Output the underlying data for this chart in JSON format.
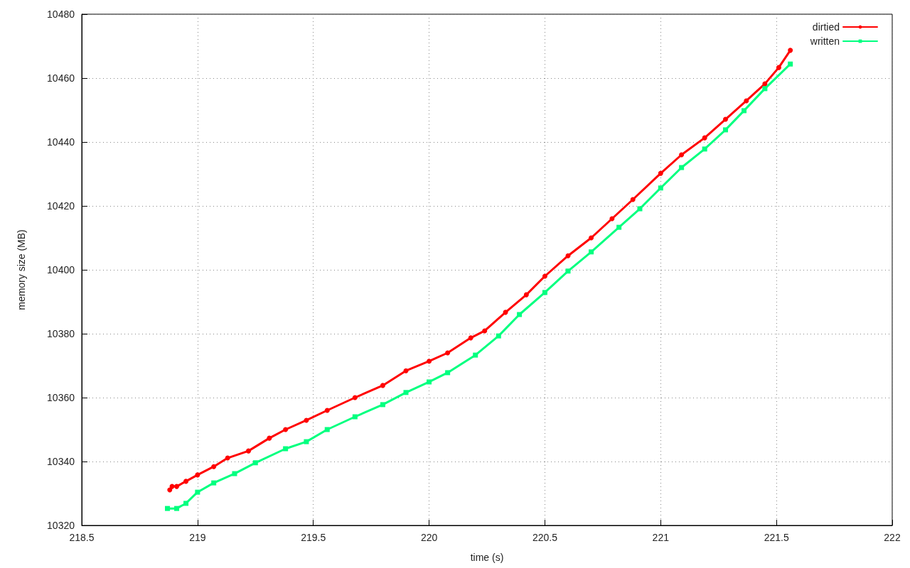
{
  "chart_data": {
    "type": "line",
    "xlabel": "time (s)",
    "ylabel": "memory size (MB)",
    "xlim": [
      218.5,
      222
    ],
    "xticks": [
      218.5,
      219,
      219.5,
      220,
      220.5,
      221,
      221.5,
      222
    ],
    "ylim": [
      10320,
      10480
    ],
    "yticks": [
      10320,
      10340,
      10360,
      10380,
      10400,
      10420,
      10440,
      10460,
      10480
    ],
    "grid": true,
    "legend": "top right",
    "line_style": "solid",
    "series": [
      {
        "name": "dirtied",
        "color": "#ff0000",
        "marker": "circle",
        "x": [
          218.88,
          218.89,
          218.91,
          218.95,
          219.0,
          219.07,
          219.13,
          219.22,
          219.31,
          219.38,
          219.47,
          219.56,
          219.68,
          219.8,
          219.9,
          220.0,
          220.08,
          220.18,
          220.24,
          220.33,
          220.42,
          220.5,
          220.6,
          220.7,
          220.79,
          220.88,
          221.0,
          221.09,
          221.19,
          221.28,
          221.37,
          221.45,
          221.51,
          221.56
        ],
        "values": [
          10331.1,
          10332.2,
          10332.2,
          10333.8,
          10335.8,
          10338.4,
          10341.1,
          10343.3,
          10347.3,
          10350.0,
          10352.9,
          10356.0,
          10360.0,
          10363.8,
          10368.4,
          10371.4,
          10374.0,
          10378.7,
          10380.9,
          10386.7,
          10392.2,
          10398.0,
          10404.4,
          10410.0,
          10416.0,
          10422.0,
          10430.2,
          10436.0,
          10441.3,
          10447.1,
          10452.9,
          10458.2,
          10463.3,
          10468.7
        ]
      },
      {
        "name": "written",
        "color": "#00ff7f",
        "marker": "square",
        "x": [
          218.87,
          218.91,
          218.95,
          219.0,
          219.07,
          219.16,
          219.25,
          219.38,
          219.47,
          219.56,
          219.68,
          219.8,
          219.9,
          220.0,
          220.08,
          220.2,
          220.3,
          220.39,
          220.5,
          220.6,
          220.7,
          220.82,
          220.91,
          221.0,
          221.09,
          221.19,
          221.28,
          221.36,
          221.45,
          221.56
        ],
        "values": [
          10325.3,
          10325.3,
          10326.9,
          10330.4,
          10333.3,
          10336.2,
          10339.6,
          10344.0,
          10346.2,
          10350.0,
          10354.0,
          10357.8,
          10361.6,
          10364.9,
          10367.8,
          10373.3,
          10379.3,
          10386.0,
          10392.9,
          10399.6,
          10405.6,
          10413.3,
          10419.1,
          10425.6,
          10432.0,
          10437.8,
          10443.8,
          10449.8,
          10456.7,
          10464.4
        ]
      }
    ]
  }
}
